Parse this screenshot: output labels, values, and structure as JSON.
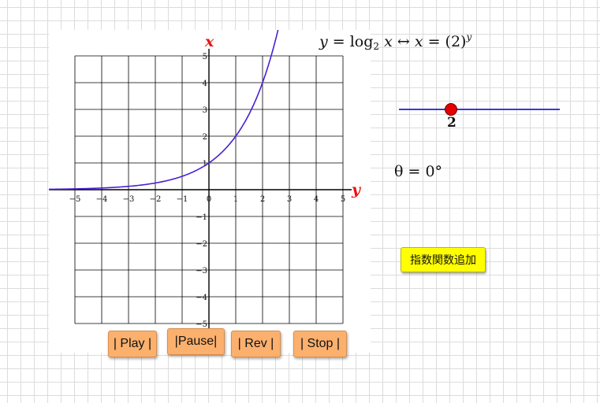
{
  "axis_labels": {
    "horizontal": "y",
    "vertical": "x"
  },
  "x_ticks": [
    "−5",
    "−4",
    "−3",
    "−2",
    "−1",
    "0",
    "1",
    "2",
    "3",
    "4",
    "5"
  ],
  "y_ticks": [
    "5",
    "4",
    "3",
    "2",
    "1",
    "−1",
    "−2",
    "−3",
    "−4",
    "−5"
  ],
  "formula": {
    "lhs": "y",
    "equals": " = ",
    "log": "log",
    "base": "2",
    "arg": "x",
    "arrow": " ↔ ",
    "rhs_var": "x",
    "rhs_eq": " = (2)",
    "exponent": "y"
  },
  "slider": {
    "value": "2"
  },
  "theta": {
    "label": "θ = 0°"
  },
  "add_button": {
    "label": "指数関数追加"
  },
  "controls": {
    "play": "| Play |",
    "pause": "|Pause|",
    "rev": "| Rev |",
    "stop": "| Stop |"
  },
  "chart_data": {
    "type": "line",
    "series": [
      {
        "name": "",
        "function": "2^t",
        "color": "#4a1fd6",
        "t_range": [
          -6,
          2.7
        ]
      }
    ],
    "xlim": [
      -5,
      5
    ],
    "ylim": [
      -5,
      5
    ],
    "grid": true
  }
}
